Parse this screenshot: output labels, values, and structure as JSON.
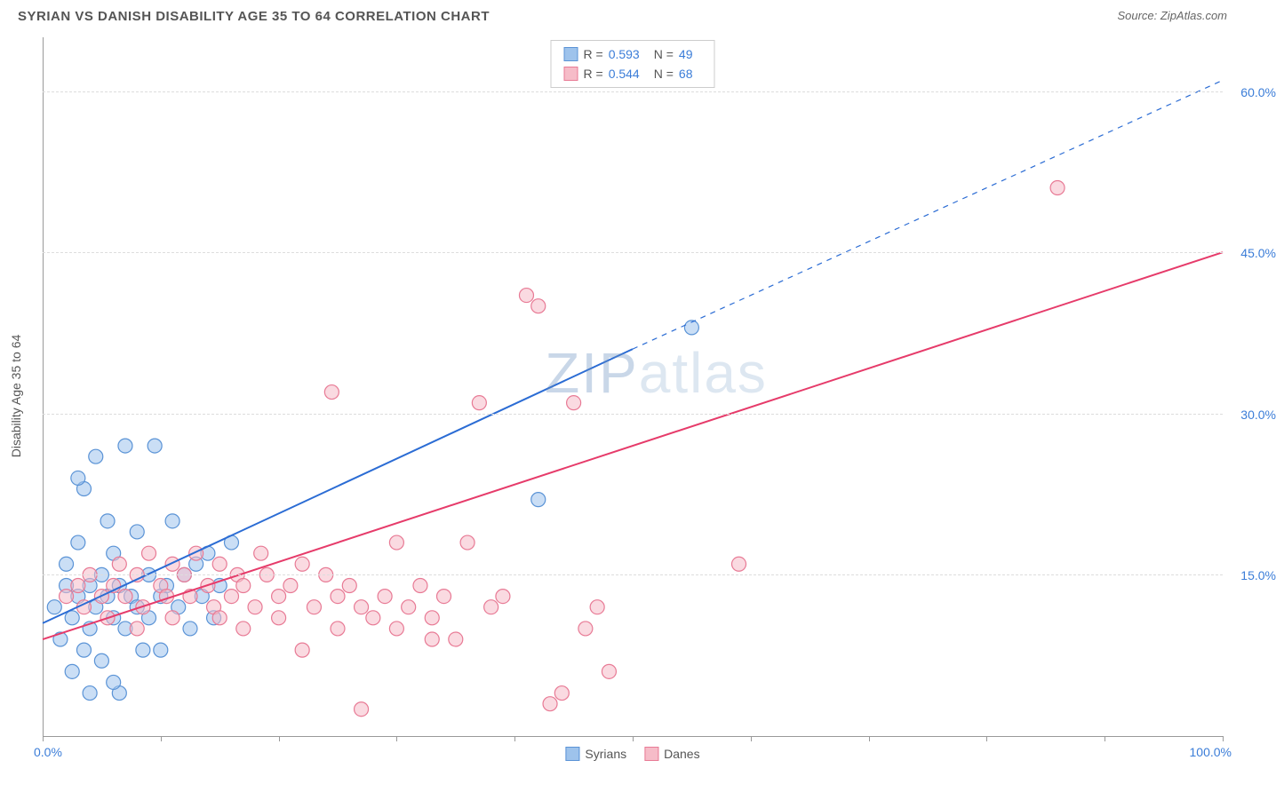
{
  "title": "SYRIAN VS DANISH DISABILITY AGE 35 TO 64 CORRELATION CHART",
  "source": "Source: ZipAtlas.com",
  "y_axis_title": "Disability Age 35 to 64",
  "watermark_a": "ZIP",
  "watermark_b": "atlas",
  "chart": {
    "type": "scatter",
    "xlim": [
      0,
      100
    ],
    "ylim": [
      0,
      65
    ],
    "x_label_min": "0.0%",
    "x_label_max": "100.0%",
    "x_ticks": [
      0,
      10,
      20,
      30,
      40,
      50,
      60,
      70,
      80,
      90,
      100
    ],
    "y_gridlines": [
      {
        "value": 15,
        "label": "15.0%"
      },
      {
        "value": 30,
        "label": "30.0%"
      },
      {
        "value": 45,
        "label": "45.0%"
      },
      {
        "value": 60,
        "label": "60.0%"
      }
    ],
    "background_color": "#ffffff",
    "grid_color": "#dddddd",
    "axis_color": "#999999",
    "tick_label_color": "#3b7dd8",
    "marker_radius": 8,
    "marker_opacity": 0.55,
    "series": [
      {
        "name": "Syrians",
        "fill_color": "#9ec3ec",
        "stroke_color": "#5a93d6",
        "trend": {
          "x1": 0,
          "y1": 10.5,
          "x2": 50,
          "y2": 36,
          "x2_ext": 100,
          "y2_ext": 61,
          "color": "#2b6cd4",
          "width": 2,
          "dash_after_x": 50
        },
        "r_value": "0.593",
        "n_value": "49",
        "points": [
          [
            1,
            12
          ],
          [
            1.5,
            9
          ],
          [
            2,
            14
          ],
          [
            2,
            16
          ],
          [
            2.5,
            6
          ],
          [
            2.5,
            11
          ],
          [
            3,
            13
          ],
          [
            3,
            18
          ],
          [
            3.5,
            8
          ],
          [
            3.5,
            23
          ],
          [
            4,
            10
          ],
          [
            4,
            14
          ],
          [
            4.5,
            12
          ],
          [
            4.5,
            26
          ],
          [
            5,
            7
          ],
          [
            5,
            15
          ],
          [
            5.5,
            13
          ],
          [
            5.5,
            20
          ],
          [
            6,
            11
          ],
          [
            6,
            17
          ],
          [
            6.5,
            4
          ],
          [
            6.5,
            14
          ],
          [
            7,
            27
          ],
          [
            7,
            10
          ],
          [
            7.5,
            13
          ],
          [
            8,
            12
          ],
          [
            8,
            19
          ],
          [
            8.5,
            8
          ],
          [
            9,
            15
          ],
          [
            9,
            11
          ],
          [
            9.5,
            27
          ],
          [
            10,
            13
          ],
          [
            10,
            8
          ],
          [
            10.5,
            14
          ],
          [
            11,
            20
          ],
          [
            11.5,
            12
          ],
          [
            12,
            15
          ],
          [
            12.5,
            10
          ],
          [
            13,
            16
          ],
          [
            13.5,
            13
          ],
          [
            14,
            17
          ],
          [
            14.5,
            11
          ],
          [
            15,
            14
          ],
          [
            16,
            18
          ],
          [
            42,
            22
          ],
          [
            55,
            38
          ],
          [
            6,
            5
          ],
          [
            4,
            4
          ],
          [
            3,
            24
          ]
        ]
      },
      {
        "name": "Danes",
        "fill_color": "#f6bcc8",
        "stroke_color": "#e87a95",
        "trend": {
          "x1": 0,
          "y1": 9,
          "x2": 100,
          "y2": 45,
          "color": "#e63b6a",
          "width": 2
        },
        "r_value": "0.544",
        "n_value": "68",
        "points": [
          [
            2,
            13
          ],
          [
            3,
            14
          ],
          [
            3.5,
            12
          ],
          [
            4,
            15
          ],
          [
            5,
            13
          ],
          [
            5.5,
            11
          ],
          [
            6,
            14
          ],
          [
            6.5,
            16
          ],
          [
            7,
            13
          ],
          [
            8,
            15
          ],
          [
            8.5,
            12
          ],
          [
            9,
            17
          ],
          [
            10,
            14
          ],
          [
            10.5,
            13
          ],
          [
            11,
            16
          ],
          [
            12,
            15
          ],
          [
            12.5,
            13
          ],
          [
            13,
            17
          ],
          [
            14,
            14
          ],
          [
            14.5,
            12
          ],
          [
            15,
            16
          ],
          [
            16,
            13
          ],
          [
            16.5,
            15
          ],
          [
            17,
            14
          ],
          [
            18,
            12
          ],
          [
            18.5,
            17
          ],
          [
            19,
            15
          ],
          [
            20,
            13
          ],
          [
            21,
            14
          ],
          [
            22,
            16
          ],
          [
            23,
            12
          ],
          [
            24,
            15
          ],
          [
            24.5,
            32
          ],
          [
            25,
            13
          ],
          [
            26,
            14
          ],
          [
            27,
            12
          ],
          [
            28,
            11
          ],
          [
            29,
            13
          ],
          [
            30,
            10
          ],
          [
            30,
            18
          ],
          [
            31,
            12
          ],
          [
            32,
            14
          ],
          [
            33,
            11
          ],
          [
            34,
            13
          ],
          [
            35,
            9
          ],
          [
            36,
            18
          ],
          [
            37,
            31
          ],
          [
            38,
            12
          ],
          [
            39,
            13
          ],
          [
            41,
            41
          ],
          [
            42,
            40
          ],
          [
            43,
            3
          ],
          [
            44,
            4
          ],
          [
            45,
            31
          ],
          [
            47,
            12
          ],
          [
            48,
            6
          ],
          [
            59,
            16
          ],
          [
            86,
            51
          ],
          [
            27,
            2.5
          ],
          [
            8,
            10
          ],
          [
            11,
            11
          ],
          [
            15,
            11
          ],
          [
            17,
            10
          ],
          [
            20,
            11
          ],
          [
            25,
            10
          ],
          [
            33,
            9
          ],
          [
            46,
            10
          ],
          [
            22,
            8
          ]
        ]
      }
    ],
    "legend_top": {
      "rows": [
        {
          "r_label": "R =",
          "r": "0.593",
          "n_label": "N =",
          "n": "49"
        },
        {
          "r_label": "R =",
          "r": "0.544",
          "n_label": "N =",
          "n": "68"
        }
      ]
    },
    "legend_bottom": [
      "Syrians",
      "Danes"
    ]
  }
}
